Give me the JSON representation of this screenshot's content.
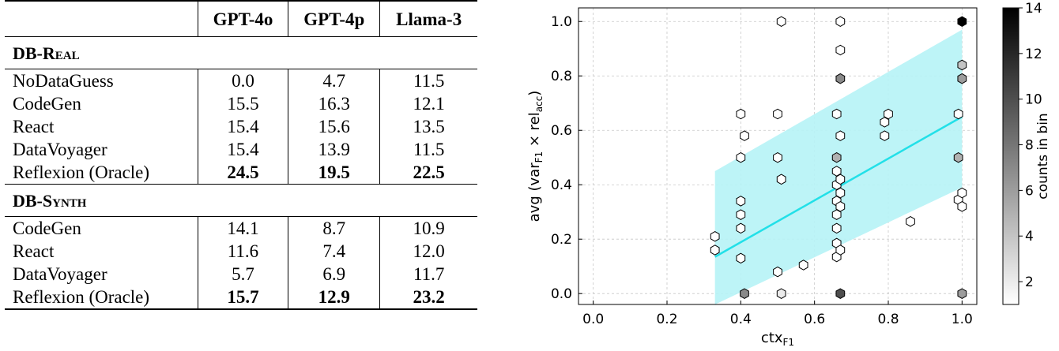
{
  "table": {
    "columns": [
      "",
      "GPT-4o",
      "GPT-4p",
      "Llama-3"
    ],
    "sections": [
      {
        "name": "DB-Real",
        "rows": [
          {
            "method": "NoDataGuess",
            "values": [
              "0.0",
              "4.7",
              "11.5"
            ],
            "bold": false
          },
          {
            "method": "CodeGen",
            "values": [
              "15.5",
              "16.3",
              "12.1"
            ],
            "bold": false
          },
          {
            "method": "React",
            "values": [
              "15.4",
              "15.6",
              "13.5"
            ],
            "bold": false
          },
          {
            "method": "DataVoyager",
            "values": [
              "15.4",
              "13.9",
              "11.5"
            ],
            "bold": false
          },
          {
            "method": "Reflexion (Oracle)",
            "values": [
              "24.5",
              "19.5",
              "22.5"
            ],
            "bold": true
          }
        ]
      },
      {
        "name": "DB-Synth",
        "rows": [
          {
            "method": "CodeGen",
            "values": [
              "14.1",
              "8.7",
              "10.9"
            ],
            "bold": false
          },
          {
            "method": "React",
            "values": [
              "11.6",
              "7.4",
              "12.0"
            ],
            "bold": false
          },
          {
            "method": "DataVoyager",
            "values": [
              "5.7",
              "6.9",
              "11.7"
            ],
            "bold": false
          },
          {
            "method": "Reflexion (Oracle)",
            "values": [
              "15.7",
              "12.9",
              "23.2"
            ],
            "bold": true
          }
        ]
      }
    ]
  },
  "chart_data": {
    "type": "hexbin",
    "xlabel": "ctx",
    "xlabel_sub": "F1",
    "ylabel_parts": {
      "prefix": "avg (var",
      "sub1": "F1",
      "mid": " × rel",
      "sub2": "acc",
      "suffix": ")"
    },
    "xlim": [
      -0.04,
      1.04
    ],
    "ylim": [
      -0.04,
      1.05
    ],
    "xticks": [
      0.0,
      0.2,
      0.4,
      0.6,
      0.8,
      1.0
    ],
    "xtick_labels": [
      "0.0",
      "0.2",
      "0.4",
      "0.6",
      "0.8",
      "1.0"
    ],
    "yticks": [
      0.0,
      0.2,
      0.4,
      0.6,
      0.8,
      1.0
    ],
    "ytick_labels": [
      "0.0",
      "0.2",
      "0.4",
      "0.6",
      "0.8",
      "1.0"
    ],
    "grid": true,
    "colorbar": {
      "label": "counts in bin",
      "min": 1,
      "max": 14,
      "ticks": [
        2,
        4,
        6,
        8,
        10,
        12,
        14
      ],
      "tick_labels": [
        "2",
        "4",
        "6",
        "8",
        "10",
        "12",
        "14"
      ]
    },
    "regression": {
      "x0": 0.33,
      "y0": 0.135,
      "x1": 1.0,
      "y1": 0.65,
      "color": "#22e0e8"
    },
    "band": {
      "x0": 0.33,
      "lower0": -0.04,
      "upper0": 0.45,
      "x1": 1.0,
      "lower1": 0.39,
      "upper1": 0.97,
      "color": "#b6f3f6"
    },
    "bins": [
      {
        "x": 0.33,
        "y": 0.21,
        "count": 1
      },
      {
        "x": 0.33,
        "y": 0.16,
        "count": 1
      },
      {
        "x": 0.4,
        "y": 0.66,
        "count": 1
      },
      {
        "x": 0.4,
        "y": 0.5,
        "count": 1
      },
      {
        "x": 0.4,
        "y": 0.34,
        "count": 1
      },
      {
        "x": 0.4,
        "y": 0.29,
        "count": 1
      },
      {
        "x": 0.4,
        "y": 0.24,
        "count": 1
      },
      {
        "x": 0.4,
        "y": 0.13,
        "count": 1
      },
      {
        "x": 0.41,
        "y": 0.58,
        "count": 1
      },
      {
        "x": 0.41,
        "y": 0.0,
        "count": 7
      },
      {
        "x": 0.5,
        "y": 0.66,
        "count": 1
      },
      {
        "x": 0.5,
        "y": 0.5,
        "count": 1
      },
      {
        "x": 0.5,
        "y": 0.08,
        "count": 1
      },
      {
        "x": 0.51,
        "y": 1.0,
        "count": 1
      },
      {
        "x": 0.51,
        "y": 0.42,
        "count": 1
      },
      {
        "x": 0.51,
        "y": 0.0,
        "count": 2
      },
      {
        "x": 0.57,
        "y": 0.105,
        "count": 1
      },
      {
        "x": 0.66,
        "y": 0.66,
        "count": 1
      },
      {
        "x": 0.66,
        "y": 0.5,
        "count": 5
      },
      {
        "x": 0.66,
        "y": 0.45,
        "count": 1
      },
      {
        "x": 0.66,
        "y": 0.4,
        "count": 1
      },
      {
        "x": 0.66,
        "y": 0.34,
        "count": 1
      },
      {
        "x": 0.66,
        "y": 0.29,
        "count": 1
      },
      {
        "x": 0.66,
        "y": 0.24,
        "count": 1
      },
      {
        "x": 0.66,
        "y": 0.185,
        "count": 1
      },
      {
        "x": 0.66,
        "y": 0.135,
        "count": 1
      },
      {
        "x": 0.67,
        "y": 0.0,
        "count": 10
      },
      {
        "x": 0.67,
        "y": 1.0,
        "count": 1
      },
      {
        "x": 0.67,
        "y": 0.895,
        "count": 1
      },
      {
        "x": 0.67,
        "y": 0.79,
        "count": 7
      },
      {
        "x": 0.67,
        "y": 0.58,
        "count": 1
      },
      {
        "x": 0.67,
        "y": 0.42,
        "count": 1
      },
      {
        "x": 0.67,
        "y": 0.37,
        "count": 1
      },
      {
        "x": 0.67,
        "y": 0.32,
        "count": 1
      },
      {
        "x": 0.67,
        "y": 0.16,
        "count": 1
      },
      {
        "x": 0.79,
        "y": 0.63,
        "count": 1
      },
      {
        "x": 0.8,
        "y": 0.66,
        "count": 1
      },
      {
        "x": 0.79,
        "y": 0.58,
        "count": 1
      },
      {
        "x": 0.86,
        "y": 0.265,
        "count": 1
      },
      {
        "x": 0.99,
        "y": 0.66,
        "count": 1
      },
      {
        "x": 0.99,
        "y": 0.5,
        "count": 5
      },
      {
        "x": 0.99,
        "y": 0.345,
        "count": 1
      },
      {
        "x": 1.0,
        "y": 1.0,
        "count": 14
      },
      {
        "x": 1.0,
        "y": 0.84,
        "count": 4
      },
      {
        "x": 1.0,
        "y": 0.79,
        "count": 6
      },
      {
        "x": 1.0,
        "y": 0.37,
        "count": 1
      },
      {
        "x": 1.0,
        "y": 0.32,
        "count": 1
      },
      {
        "x": 1.0,
        "y": 0.0,
        "count": 6
      }
    ]
  }
}
